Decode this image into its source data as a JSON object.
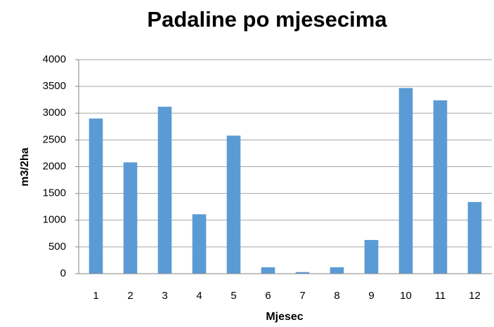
{
  "chart_data": {
    "type": "bar",
    "title": "Padaline po mjesecima",
    "x_label": "Mjesec",
    "y_label": "m3/2ha",
    "categories": [
      "1",
      "2",
      "3",
      "4",
      "5",
      "6",
      "7",
      "8",
      "9",
      "10",
      "11",
      "12"
    ],
    "values": [
      2900,
      2080,
      3120,
      1110,
      2580,
      120,
      30,
      120,
      630,
      3470,
      3240,
      1340
    ],
    "color": "#5b9bd5",
    "ylim": [
      0,
      4000
    ],
    "yticks": [
      0,
      500,
      1000,
      1500,
      2000,
      2500,
      3000,
      3500,
      4000
    ],
    "grid": true
  }
}
